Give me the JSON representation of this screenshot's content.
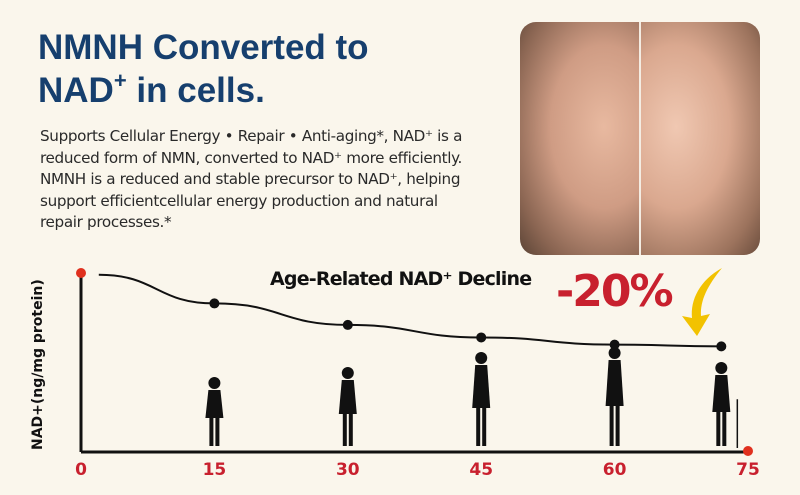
{
  "header": {
    "title_line1": "NMNH Converted to",
    "title_line2_main": "NAD",
    "title_line2_sup": "+",
    "title_line2_rest": " in cells."
  },
  "description": "Supports Cellular Energy • Repair • Anti-aging*, NAD⁺ is a reduced form of NMN, converted to NAD⁺ more efficiently. NMNH is a reduced and stable precursor to NAD⁺, helping support efficientcellular energy production and natural repair processes.*",
  "photo": {
    "subject": "before-after face comparison"
  },
  "callout": {
    "text": "-20%",
    "color": "#c8202e",
    "arrow_color": "#f2c200"
  },
  "chart_data": {
    "type": "line",
    "title": "Age-Related NAD⁺ Decline",
    "xlabel": "",
    "ylabel": "NAD+(ng/mg protein)",
    "x_ticks": [
      "0",
      "15",
      "30",
      "45",
      "60",
      "75"
    ],
    "xlim": [
      0,
      75
    ],
    "ylim": [
      0,
      100
    ],
    "grid": false,
    "y_ticks_shown": false,
    "points": [
      {
        "x": 2,
        "y": 99
      },
      {
        "x": 15,
        "y": 83
      },
      {
        "x": 30,
        "y": 71
      },
      {
        "x": 45,
        "y": 64
      },
      {
        "x": 60,
        "y": 60
      },
      {
        "x": 72,
        "y": 59
      }
    ],
    "figures": [
      "girl",
      "young-woman",
      "adult-woman",
      "middle-aged-woman",
      "elderly-woman-with-cane"
    ],
    "figure_x": [
      15,
      30,
      45,
      60,
      72
    ],
    "line_color": "#111111",
    "axis_end_marker_color": "#e0301e",
    "tick_color": "#c8202e"
  }
}
